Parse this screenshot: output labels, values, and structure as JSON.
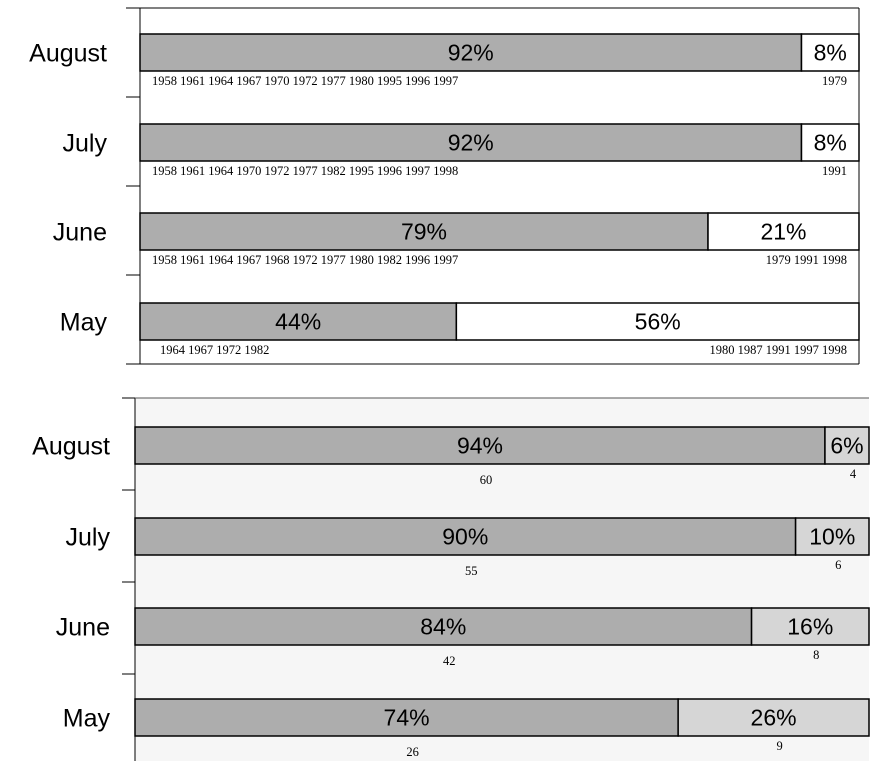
{
  "colors": {
    "primary_fill": "#adadad",
    "secondary_fill_top": "#ffffff",
    "secondary_fill_bottom": "#d6d6d6",
    "outline": "#000000"
  },
  "chart_data": [
    {
      "type": "bar",
      "orientation": "horizontal-stacked",
      "categories": [
        "August",
        "July",
        "June",
        "May"
      ],
      "series": [
        {
          "values": [
            92,
            92,
            79,
            44
          ]
        },
        {
          "values": [
            8,
            8,
            21,
            56
          ]
        }
      ],
      "value_labels": {
        "primary": [
          "92%",
          "92%",
          "79%",
          "44%"
        ],
        "secondary": [
          "8%",
          "8%",
          "21%",
          "56%"
        ]
      },
      "annotations": {
        "primary": [
          "1958 1961 1964 1967 1970 1972 1977 1980 1995 1996 1997",
          "1958 1961 1964 1970 1972 1977 1982 1995 1996 1997 1998",
          "1958 1961 1964 1967 1968 1972 1977 1980 1982 1996 1997",
          "1964 1967 1972 1982"
        ],
        "secondary": [
          "1979",
          "1991",
          "1979 1991 1998",
          "1980 1987 1991 1997 1998"
        ]
      },
      "xlim": [
        0,
        100
      ],
      "grid": false,
      "legend": "none"
    },
    {
      "type": "bar",
      "orientation": "horizontal-stacked",
      "categories": [
        "August",
        "July",
        "June",
        "May"
      ],
      "series": [
        {
          "values": [
            94,
            90,
            84,
            74
          ]
        },
        {
          "values": [
            6,
            10,
            16,
            26
          ]
        }
      ],
      "value_labels": {
        "primary": [
          "94%",
          "90%",
          "84%",
          "74%"
        ],
        "secondary": [
          "6%",
          "10%",
          "16%",
          "26%"
        ]
      },
      "annotations": {
        "primary": [
          "60",
          "55",
          "42",
          "26"
        ],
        "secondary": [
          "4",
          "6",
          "8",
          "9"
        ]
      },
      "xlim": [
        0,
        100
      ],
      "grid": false,
      "legend": "none"
    }
  ]
}
